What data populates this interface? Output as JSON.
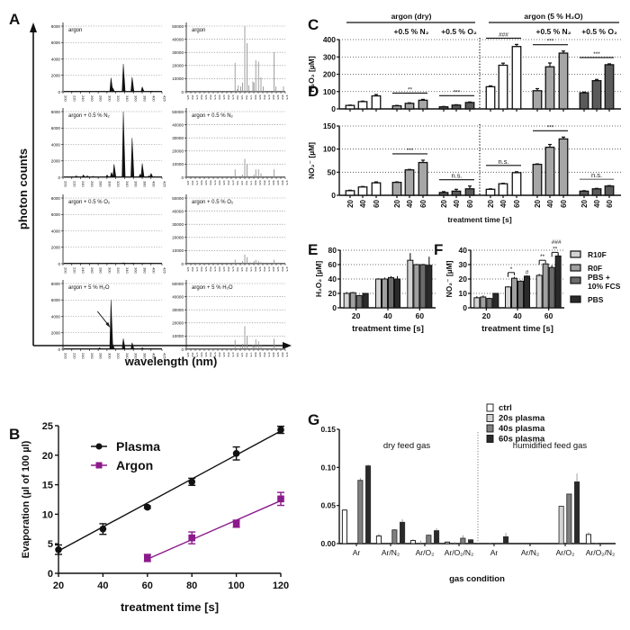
{
  "panel_labels": [
    "A",
    "B",
    "C",
    "D",
    "E",
    "F",
    "G"
  ],
  "chart_data": [
    {
      "id": "A",
      "type": "line",
      "title": "",
      "ylabel": "photon counts",
      "xlabel": "wavelength  (nm)",
      "left_column": {
        "ylim": [
          0,
          8000
        ],
        "yticks": [
          "0",
          "2000",
          "4000",
          "6000",
          "8000"
        ],
        "xticks": [
          "200",
          "220",
          "240",
          "260",
          "280",
          "300",
          "320",
          "340",
          "360",
          "380",
          "400",
          "425"
        ],
        "xrange": [
          200,
          425
        ]
      },
      "right_column": {
        "ylim": [
          0,
          50000
        ],
        "yticks": [
          "0",
          "10000",
          "20000",
          "30000",
          "40000",
          "50000"
        ],
        "xrange": [
          425,
          975
        ]
      },
      "rows": [
        {
          "label": "argon",
          "uv_peaks": [
            [
              309,
              1700
            ],
            [
              313,
              500
            ],
            [
              337,
              3400
            ],
            [
              357,
              1800
            ],
            [
              380,
              600
            ],
            [
              400,
              100
            ]
          ],
          "nir_peaks": [
            [
              696,
              22000
            ],
            [
              707,
              2000
            ],
            [
              714,
              5000
            ],
            [
              727,
              4000
            ],
            [
              738,
              7000
            ],
            [
              750,
              50000
            ],
            [
              763,
              37000
            ],
            [
              772,
              5000
            ],
            [
              795,
              8000
            ],
            [
              801,
              7000
            ],
            [
              811,
              24000
            ],
            [
              826,
              23000
            ],
            [
              840,
              11000
            ],
            [
              852,
              4000
            ],
            [
              912,
              30000
            ],
            [
              922,
              4000
            ],
            [
              965,
              4000
            ]
          ]
        },
        {
          "label": "argon + 0.5 % N₂",
          "uv_peaks": [
            [
              230,
              200
            ],
            [
              246,
              300
            ],
            [
              255,
              200
            ],
            [
              268,
              150
            ],
            [
              300,
              300
            ],
            [
              310,
              600
            ],
            [
              316,
              1600
            ],
            [
              337,
              8500
            ],
            [
              357,
              4800
            ],
            [
              375,
              400
            ],
            [
              380,
              1700
            ],
            [
              395,
              200
            ],
            [
              400,
              500
            ]
          ],
          "nir_peaks": [
            [
              696,
              6000
            ],
            [
              738,
              2000
            ],
            [
              750,
              14000
            ],
            [
              763,
              10000
            ],
            [
              801,
              2000
            ],
            [
              811,
              6000
            ],
            [
              826,
              6000
            ],
            [
              840,
              3000
            ],
            [
              912,
              6000
            ]
          ]
        },
        {
          "label": "argon + 0.5 % O₂",
          "uv_peaks": [
            [
              309,
              80
            ],
            [
              337,
              150
            ],
            [
              357,
              80
            ]
          ],
          "nir_peaks": [
            [
              696,
              3000
            ],
            [
              738,
              2000
            ],
            [
              750,
              7000
            ],
            [
              763,
              5000
            ],
            [
              777,
              1000
            ],
            [
              801,
              2000
            ],
            [
              811,
              3000
            ],
            [
              826,
              2000
            ],
            [
              840,
              1000
            ],
            [
              912,
              3000
            ]
          ]
        },
        {
          "label": "argon + 5 % H₂O",
          "uv_peaks": [
            [
              283,
              200
            ],
            [
              309,
              6000
            ],
            [
              313,
              600
            ],
            [
              337,
              1300
            ],
            [
              357,
              800
            ],
            [
              380,
              200
            ],
            [
              400,
              100
            ]
          ],
          "nir_peaks": [
            [
              696,
              7000
            ],
            [
              714,
              1000
            ],
            [
              727,
              1500
            ],
            [
              738,
              4000
            ],
            [
              750,
              17500
            ],
            [
              763,
              10000
            ],
            [
              795,
              3000
            ],
            [
              801,
              2000
            ],
            [
              811,
              7500
            ],
            [
              826,
              6000
            ],
            [
              840,
              3500
            ],
            [
              852,
              1000
            ],
            [
              912,
              8000
            ],
            [
              965,
              500
            ]
          ],
          "annotation": "arrow pointing to OH peak at 309 nm"
        }
      ]
    },
    {
      "id": "B",
      "type": "scatter",
      "title": "",
      "xlabel": "treatment time [s]",
      "ylabel": "Evaporation (µl of 100 µl)",
      "xlim": [
        20,
        120
      ],
      "ylim": [
        0,
        25
      ],
      "xticks": [
        "20",
        "40",
        "60",
        "80",
        "100",
        "120"
      ],
      "yticks": [
        "0",
        "5",
        "10",
        "15",
        "20",
        "25"
      ],
      "legend_position": "top-left",
      "series": [
        {
          "name": "Plasma",
          "color": "#111111",
          "marker": "circle",
          "x": [
            20,
            40,
            60,
            80,
            100,
            120
          ],
          "y": [
            4.0,
            7.5,
            11.2,
            15.5,
            20.3,
            24.3
          ],
          "err": [
            0.8,
            0.9,
            0.2,
            0.6,
            1.1,
            0.6
          ],
          "fit": [
            [
              20,
              3.8
            ],
            [
              120,
              24.1
            ]
          ]
        },
        {
          "name": "Argon",
          "color": "#8b1a8b",
          "marker": "square",
          "x": [
            60,
            80,
            100,
            120
          ],
          "y": [
            2.6,
            6.0,
            8.4,
            12.6
          ],
          "err": [
            0.6,
            1.0,
            0.6,
            1.1
          ],
          "fit": [
            [
              60,
              2.4
            ],
            [
              120,
              12.3
            ]
          ]
        }
      ]
    },
    {
      "id": "C",
      "type": "bar",
      "ylabel": "H₂O₂ [µM]",
      "ylim": [
        0,
        400
      ],
      "yticks": [
        "0",
        "100",
        "200",
        "300",
        "400"
      ],
      "grid": true,
      "group_headers": [
        "argon (dry)",
        "argon (5 % H₂O)"
      ],
      "subgroup_headers": [
        "+0.5 % N₂",
        "+0.5 % O₂",
        "+0.5 % N₂",
        "+0.5 % O₂"
      ],
      "categories": [
        "20",
        "40",
        "60"
      ],
      "groups": [
        {
          "name": "argon (dry)",
          "fill": "#ffffff",
          "values": [
            20,
            42,
            75
          ],
          "err": [
            2,
            3,
            8
          ]
        },
        {
          "name": "argon (dry) +0.5 % N₂",
          "fill": "#a6a6a6",
          "values": [
            18,
            32,
            50
          ],
          "err": [
            2,
            3,
            5
          ],
          "sig": "**"
        },
        {
          "name": "argon (dry) +0.5 % O₂",
          "fill": "#5a5a5a",
          "values": [
            12,
            22,
            37
          ],
          "err": [
            2,
            2,
            3
          ],
          "sig": "***"
        },
        {
          "name": "argon (5 % H₂O)",
          "fill": "#ffffff",
          "values": [
            128,
            252,
            360
          ],
          "err": [
            5,
            12,
            12
          ],
          "sig": "###"
        },
        {
          "name": "argon (5 % H₂O) +0.5 % N₂",
          "fill": "#a6a6a6",
          "values": [
            105,
            243,
            322
          ],
          "err": [
            12,
            22,
            12
          ],
          "sig": "***"
        },
        {
          "name": "argon (5 % H₂O) +0.5 % O₂",
          "fill": "#5a5a5a",
          "values": [
            93,
            163,
            255
          ],
          "err": [
            4,
            7,
            5
          ],
          "sig": "***"
        }
      ]
    },
    {
      "id": "D",
      "type": "bar",
      "ylabel": "NO₂⁻ [µM]",
      "xlabel": "treatment time [s]",
      "ylim": [
        0,
        150
      ],
      "yticks": [
        "0",
        "50",
        "100",
        "150"
      ],
      "grid": true,
      "categories": [
        "20",
        "40",
        "60"
      ],
      "groups": [
        {
          "name": "argon (dry)",
          "fill": "#ffffff",
          "values": [
            10,
            18,
            27
          ],
          "err": [
            1,
            1,
            2
          ]
        },
        {
          "name": "argon (dry) +0.5 % N₂",
          "fill": "#a6a6a6",
          "values": [
            28,
            55,
            71
          ],
          "err": [
            1,
            1,
            5
          ],
          "sig": "***"
        },
        {
          "name": "argon (dry) +0.5 % O₂",
          "fill": "#5a5a5a",
          "values": [
            6,
            9,
            14
          ],
          "err": [
            2,
            4,
            6
          ],
          "sig": "n.s."
        },
        {
          "name": "argon (5 % H₂O)",
          "fill": "#ffffff",
          "values": [
            13,
            25,
            49
          ],
          "err": [
            1,
            1,
            2
          ],
          "sig": "n.s."
        },
        {
          "name": "argon (5 % H₂O) +0.5 % N₂",
          "fill": "#a6a6a6",
          "values": [
            67,
            104,
            122
          ],
          "err": [
            1,
            6,
            4
          ],
          "sig": "***"
        },
        {
          "name": "argon (5 % H₂O) +0.5 % O₂",
          "fill": "#5a5a5a",
          "values": [
            9,
            14,
            20
          ],
          "err": [
            1,
            1,
            1
          ],
          "sig": "n.s."
        }
      ]
    },
    {
      "id": "E",
      "type": "bar",
      "ylabel": "H₂O₂ [µM]",
      "xlabel": "treatment time [s]",
      "ylim": [
        0,
        80
      ],
      "yticks": [
        "0",
        "20",
        "40",
        "60",
        "80"
      ],
      "grid": true,
      "categories": [
        "20",
        "40",
        "60"
      ],
      "series": [
        {
          "name": "R10F",
          "fill": "#d4d4d4",
          "values": [
            20,
            40,
            66
          ],
          "err": [
            2,
            1,
            10
          ]
        },
        {
          "name": "R0F",
          "fill": "#a0a0a0",
          "values": [
            21,
            40,
            60
          ],
          "err": [
            1,
            2,
            1
          ]
        },
        {
          "name": "PBS + 10% FCS",
          "fill": "#6b6b6b",
          "values": [
            17,
            42,
            60
          ],
          "err": [
            1,
            2,
            1
          ]
        },
        {
          "name": "PBS",
          "fill": "#2a2a2a",
          "values": [
            20,
            40,
            59
          ],
          "err": [
            0,
            4,
            12
          ]
        }
      ]
    },
    {
      "id": "F",
      "type": "bar",
      "ylabel": "NO₂⁻ [µM]",
      "xlabel": "treatment time [s]",
      "ylim": [
        0,
        40
      ],
      "yticks": [
        "0",
        "10",
        "20",
        "30",
        "40"
      ],
      "grid": true,
      "legend_position": "right",
      "categories": [
        "20",
        "40",
        "60"
      ],
      "series": [
        {
          "name": "R10F",
          "fill": "#d4d4d4",
          "values": [
            7,
            14.5,
            22.5
          ],
          "err": [
            1,
            0.5,
            1
          ]
        },
        {
          "name": "R0F",
          "fill": "#a0a0a0",
          "values": [
            7.5,
            20.5,
            30.5
          ],
          "err": [
            1,
            1,
            0.5
          ]
        },
        {
          "name": "PBS + 10% FCS",
          "fill": "#6b6b6b",
          "values": [
            6.5,
            18.5,
            28
          ],
          "err": [
            0.5,
            0.5,
            1.5
          ]
        },
        {
          "name": "PBS",
          "fill": "#2a2a2a",
          "values": [
            10,
            22,
            36
          ],
          "err": [
            0.3,
            0.5,
            1.5
          ]
        }
      ],
      "annotations": [
        "*",
        "#",
        "**",
        "**",
        "###"
      ]
    },
    {
      "id": "G",
      "type": "bar",
      "xlabel": "gas condition",
      "ylabel": "",
      "ylim": [
        0,
        0.15
      ],
      "yticks": [
        "0.00",
        "0.05",
        "0.10",
        "0.15"
      ],
      "section_labels": [
        "dry feed gas",
        "humidified feed gas"
      ],
      "categories": [
        "Ar",
        "Ar/N₂",
        "Ar/O₂",
        "Ar/O₂/N₂",
        "Ar",
        "Ar/N₂",
        "Ar/O₂",
        "Ar/O₂/N₂"
      ],
      "legend_position": "top-center",
      "series": [
        {
          "name": "ctrl",
          "fill": "#ffffff",
          "values": [
            0.044,
            0.01,
            0.004,
            0.002,
            0,
            0,
            0,
            0.012
          ],
          "err": [
            0.001,
            0.003,
            0.002,
            0.001,
            0,
            0,
            0,
            0.003
          ]
        },
        {
          "name": "20s plasma",
          "fill": "#d4d4d4",
          "values": [
            0,
            0,
            0,
            0,
            0,
            0,
            0.049,
            0
          ],
          "err": [
            0,
            0,
            0.004,
            0.002,
            0.001,
            0,
            0,
            0.001
          ]
        },
        {
          "name": "40s plasma",
          "fill": "#808080",
          "values": [
            0.083,
            0.018,
            0.011,
            0.007,
            0,
            0,
            0.065,
            0
          ],
          "err": [
            0.003,
            0.001,
            0.001,
            0.004,
            0,
            0,
            0,
            0
          ]
        },
        {
          "name": "60s plasma",
          "fill": "#2a2a2a",
          "values": [
            0.102,
            0.028,
            0.017,
            0.005,
            0.009,
            0,
            0.081,
            0
          ],
          "err": [
            0.002,
            0.004,
            0.003,
            0.001,
            0.005,
            0,
            0.011,
            0
          ]
        }
      ]
    }
  ]
}
